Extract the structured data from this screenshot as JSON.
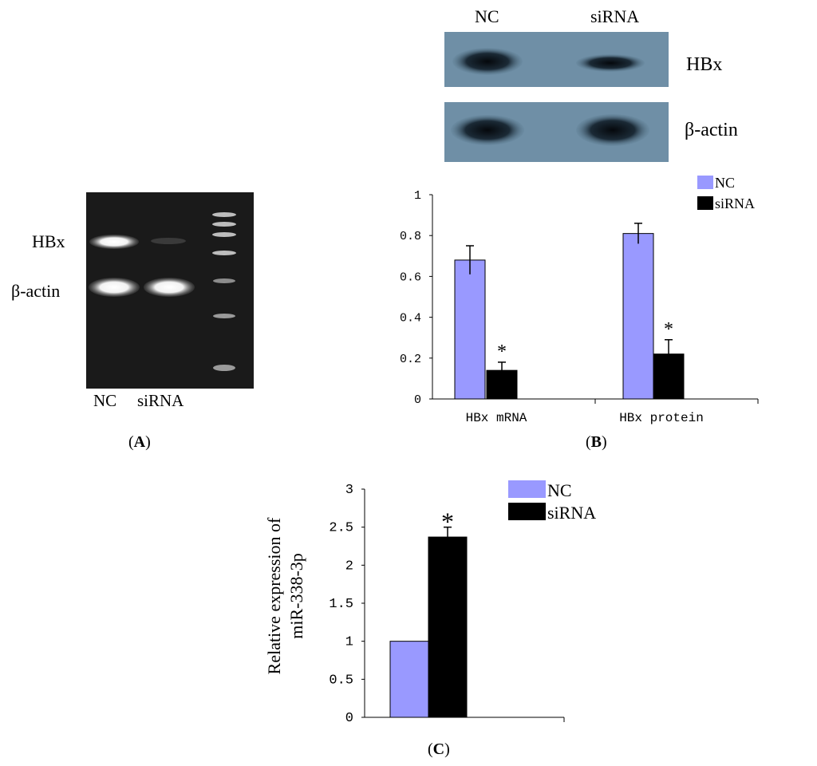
{
  "panels": {
    "A": {
      "label": "A",
      "lane_labels": [
        "NC",
        "siRNA"
      ],
      "band_labels": [
        "HBx",
        "β-actin"
      ]
    },
    "B": {
      "label": "B",
      "blot": {
        "lane_labels": [
          "NC",
          "siRNA"
        ],
        "band_labels": [
          "HBx",
          "β-actin"
        ]
      }
    },
    "C": {
      "label": "C"
    }
  },
  "colors": {
    "nc": "#9999ff",
    "sirna": "#000000",
    "gel": "#1a1a1a",
    "blot": "#6f8fa6"
  },
  "chart_data": [
    {
      "type": "bar",
      "panel": "B",
      "categories": [
        "HBx mRNA",
        "HBx protein"
      ],
      "series": [
        {
          "name": "NC",
          "values": [
            0.68,
            0.81
          ],
          "errors": [
            0.07,
            0.05
          ]
        },
        {
          "name": "siRNA",
          "values": [
            0.14,
            0.22
          ],
          "errors": [
            0.04,
            0.07
          ]
        }
      ],
      "significance": [
        "*",
        "*"
      ],
      "yticks": [
        "0",
        "0.2",
        "0.4",
        "0.6",
        "0.8",
        "1"
      ],
      "ylim": [
        0,
        1
      ],
      "legend": "top-right"
    },
    {
      "type": "bar",
      "panel": "C",
      "categories": [
        ""
      ],
      "series": [
        {
          "name": "NC",
          "values": [
            1.0
          ],
          "errors": [
            0
          ]
        },
        {
          "name": "siRNA",
          "values": [
            2.37
          ],
          "errors": [
            0.13
          ]
        }
      ],
      "significance": [
        "*"
      ],
      "ylabel": "Relative expression of miR-338-3p",
      "yticks": [
        "0",
        "0.5",
        "1",
        "1.5",
        "2",
        "2.5",
        "3"
      ],
      "ylim": [
        0,
        3
      ],
      "legend": "top-right"
    }
  ]
}
